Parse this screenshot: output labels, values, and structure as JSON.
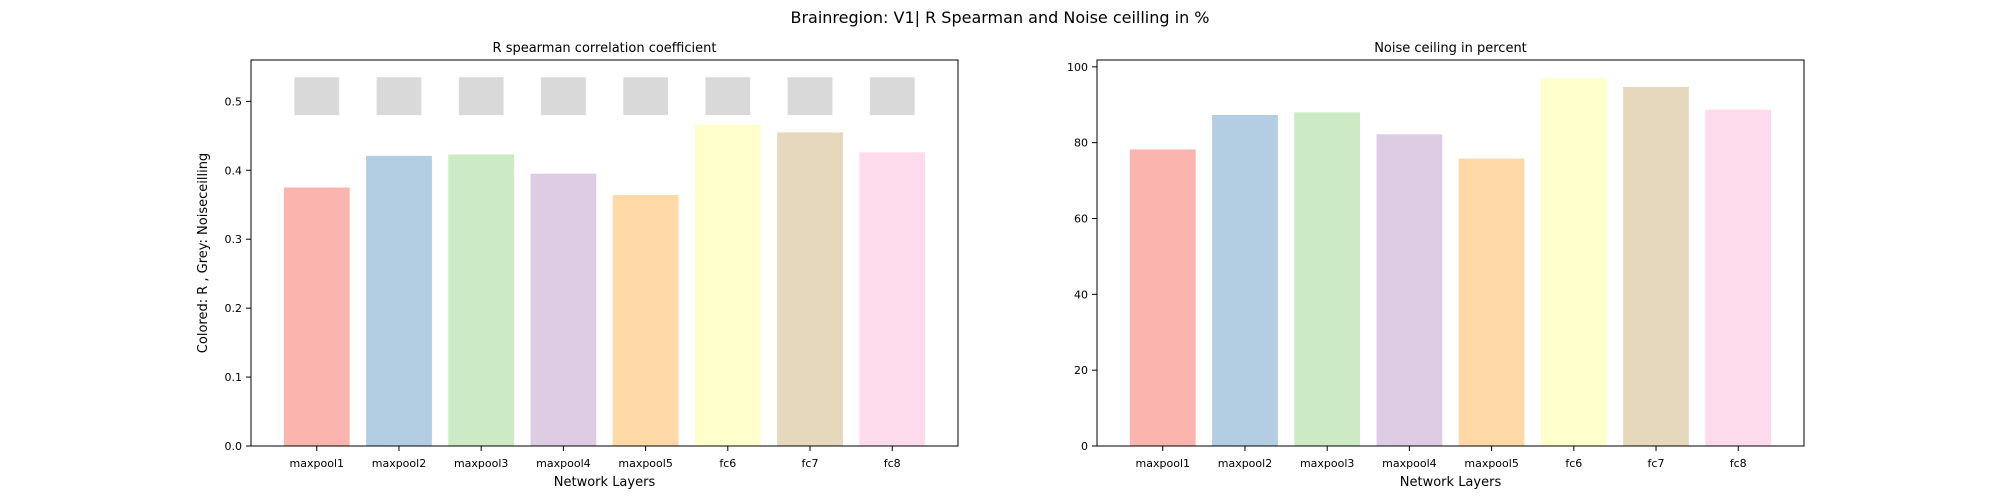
{
  "figure": {
    "suptitle": "Brainregion: V1| R Spearman and Noise ceilling in %"
  },
  "chart_data": [
    {
      "type": "bar",
      "title": "R spearman correlation coefficient",
      "xlabel": "Network Layers",
      "ylabel": "Colored: R , Grey: Noiseceilling",
      "categories": [
        "maxpool1",
        "maxpool2",
        "maxpool3",
        "maxpool4",
        "maxpool5",
        "fc6",
        "fc7",
        "fc8"
      ],
      "series": [
        {
          "values": [
            0.375,
            0.421,
            0.423,
            0.395,
            0.364,
            0.466,
            0.455,
            0.426
          ]
        }
      ],
      "noise_ceiling_band": {
        "lower": 0.48,
        "upper": 0.535,
        "color": "#d9d9d9"
      },
      "ylim": [
        0,
        0.56
      ],
      "yticks": [
        0.0,
        0.1,
        0.2,
        0.3,
        0.4,
        0.5
      ],
      "ytick_labels": [
        "0.0",
        "0.1",
        "0.2",
        "0.3",
        "0.4",
        "0.5"
      ],
      "colors": [
        "#fbb4ae",
        "#b3cde3",
        "#ccebc5",
        "#decbe4",
        "#fed9a6",
        "#ffffcc",
        "#e5d8bd",
        "#fddaec"
      ],
      "grid": false,
      "legend": false
    },
    {
      "type": "bar",
      "title": "Noise ceiling in percent",
      "xlabel": "Network Layers",
      "ylabel": "",
      "categories": [
        "maxpool1",
        "maxpool2",
        "maxpool3",
        "maxpool4",
        "maxpool5",
        "fc6",
        "fc7",
        "fc8"
      ],
      "series": [
        {
          "values": [
            78.2,
            87.3,
            88.0,
            82.2,
            75.8,
            97.0,
            94.7,
            88.7
          ]
        }
      ],
      "ylim": [
        0,
        101.8
      ],
      "yticks": [
        0,
        20,
        40,
        60,
        80,
        100
      ],
      "ytick_labels": [
        "0",
        "20",
        "40",
        "60",
        "80",
        "100"
      ],
      "colors": [
        "#fbb4ae",
        "#b3cde3",
        "#ccebc5",
        "#decbe4",
        "#fed9a6",
        "#ffffcc",
        "#e5d8bd",
        "#fddaec"
      ],
      "grid": false,
      "legend": false
    }
  ]
}
